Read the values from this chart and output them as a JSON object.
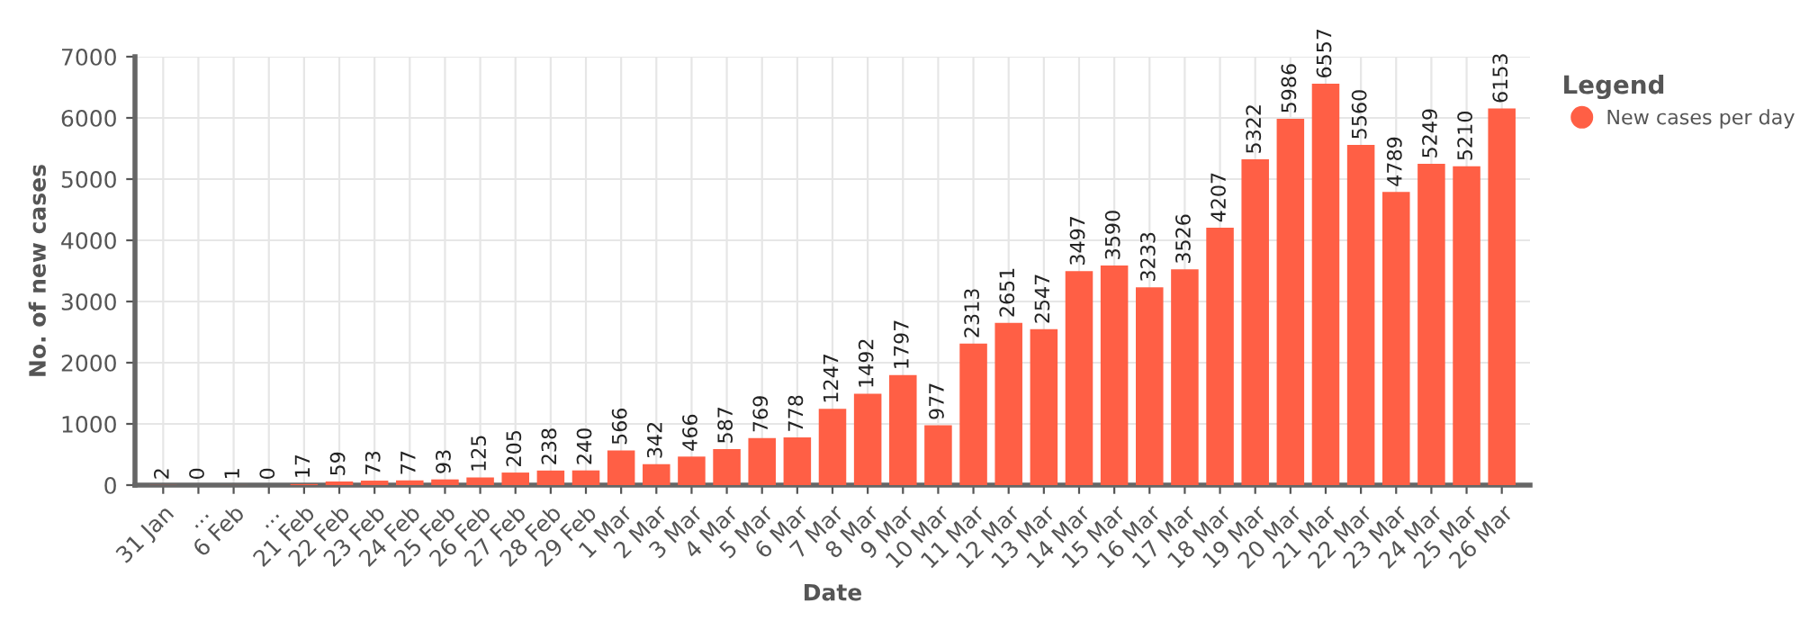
{
  "chart_data": {
    "type": "bar",
    "xlabel": "Date",
    "ylabel": "No. of new cases",
    "legend_title": "Legend",
    "categories": [
      "31 Jan",
      "...",
      "6 Feb",
      "...",
      "21 Feb",
      "22 Feb",
      "23 Feb",
      "24 Feb",
      "25 Feb",
      "26 Feb",
      "27 Feb",
      "28 Feb",
      "29 Feb",
      "1 Mar",
      "2 Mar",
      "3 Mar",
      "4 Mar",
      "5 Mar",
      "6 Mar",
      "7 Mar",
      "8 Mar",
      "9 Mar",
      "10 Mar",
      "11 Mar",
      "12 Mar",
      "13 Mar",
      "14 Mar",
      "15 Mar",
      "16 Mar",
      "17 Mar",
      "18 Mar",
      "19 Mar",
      "20 Mar",
      "21 Mar",
      "22 Mar",
      "23 Mar",
      "24 Mar",
      "25 Mar",
      "26 Mar"
    ],
    "series": [
      {
        "name": "New cases per day",
        "color": "#ff5f45",
        "values": [
          2,
          0,
          1,
          0,
          17,
          59,
          73,
          77,
          93,
          125,
          205,
          238,
          240,
          566,
          342,
          466,
          587,
          769,
          778,
          1247,
          1492,
          1797,
          977,
          2313,
          2651,
          2547,
          3497,
          3590,
          3233,
          3526,
          4207,
          5322,
          5986,
          6557,
          5560,
          4789,
          5249,
          5210,
          6153
        ]
      }
    ],
    "ylim": [
      0,
      7000
    ],
    "yticks": [
      0,
      1000,
      2000,
      3000,
      4000,
      5000,
      6000,
      7000
    ],
    "grid": true,
    "legend": "top right",
    "marker": "circle",
    "data_labels": true
  }
}
